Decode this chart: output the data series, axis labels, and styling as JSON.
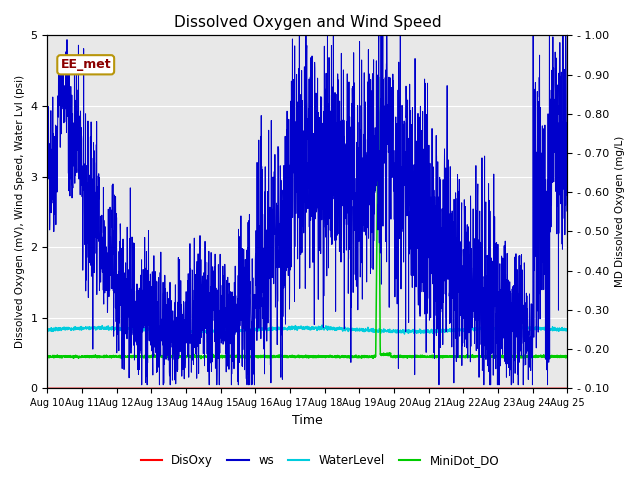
{
  "title": "Dissolved Oxygen and Wind Speed",
  "xlabel": "Time",
  "ylabel_left": "Dissolved Oxygen (mV), Wind Speed, Water Lvl (psi)",
  "ylabel_right": "MD Dissolved Oxygen (mg/L)",
  "annotation": "EE_met",
  "ylim_left": [
    0.0,
    5.0
  ],
  "ylim_right": [
    0.1,
    1.0
  ],
  "x_start_day": 10,
  "x_end_day": 25,
  "x_ticks": [
    10,
    11,
    12,
    13,
    14,
    15,
    16,
    17,
    18,
    19,
    20,
    21,
    22,
    23,
    24,
    25
  ],
  "x_tick_labels": [
    "Aug 10",
    "Aug 11",
    "Aug 12",
    "Aug 13",
    "Aug 14",
    "Aug 15",
    "Aug 16",
    "Aug 17",
    "Aug 18",
    "Aug 19",
    "Aug 20",
    "Aug 21",
    "Aug 22",
    "Aug 23",
    "Aug 24",
    "Aug 25"
  ],
  "colors": {
    "DisOxy": "#ff0000",
    "ws": "#0000cc",
    "WaterLevel": "#00ccdd",
    "MiniDot_DO": "#00cc00",
    "plot_bg": "#e8e8e8"
  },
  "legend_labels": [
    "DisOxy",
    "ws",
    "WaterLevel",
    "MiniDot_DO"
  ],
  "right_ticks": [
    0.1,
    0.2,
    0.3,
    0.4,
    0.5,
    0.6,
    0.7,
    0.8,
    0.9,
    1.0
  ],
  "seed": 12345
}
